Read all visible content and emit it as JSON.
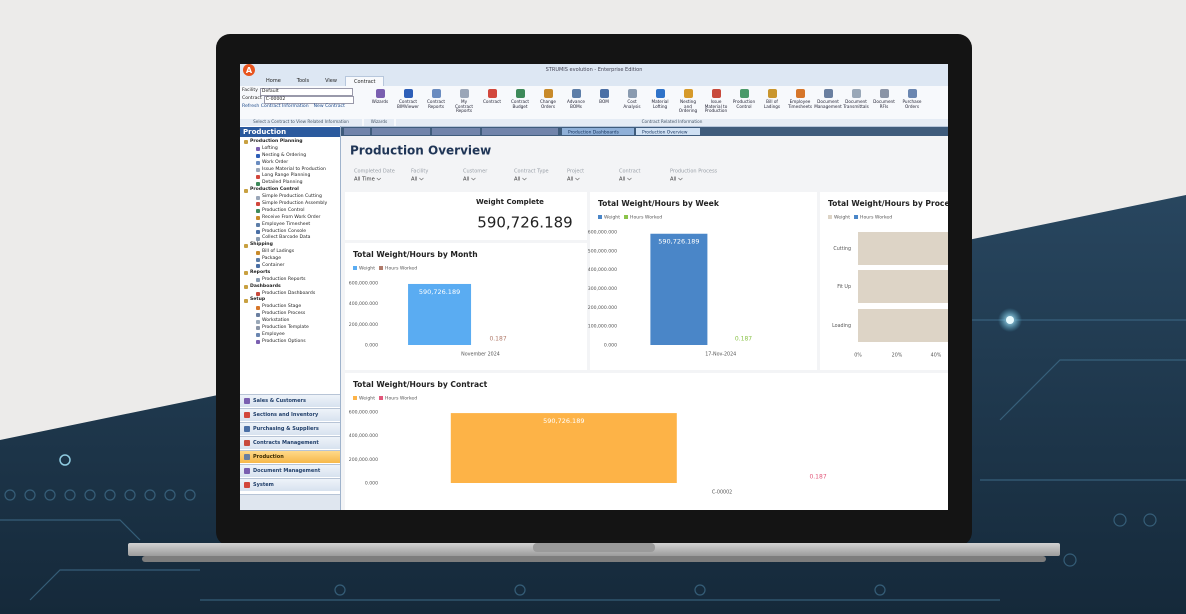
{
  "window_title": "STRUMIS evolution - Enterprise Edition",
  "ribbon": {
    "tabs": [
      "Home",
      "Tools",
      "View",
      "Contract"
    ],
    "facility_label": "Facility",
    "facility": "Default",
    "contract_label": "Contract",
    "contract": "C-00002",
    "refresh": "Refresh Contract Information",
    "new_contract": "New Contract",
    "select_hint": "Select a Contract to View Related Information",
    "buttons": [
      "Wizards",
      "Contract BIMViewer",
      "Contract Reports",
      "My Contract Reports",
      "Contract",
      "Contract Budget",
      "Change Orders",
      "Advance BOMs",
      "BOM",
      "Cost Analysis",
      "Material Lofting",
      "Nesting and Ordering",
      "Issue Material to Production",
      "Production Control",
      "Bill of Ladings",
      "Employee Timesheets",
      "Document Management",
      "Document Transmittals",
      "Document RFIs",
      "Purchase Orders"
    ],
    "groups": [
      "Wizards",
      "Contract Related Information"
    ]
  },
  "sidebar": {
    "title": "Production",
    "tree": [
      {
        "label": "Production Planning",
        "items": [
          "Lofting",
          "Nesting & Ordering",
          "Work Order",
          "Issue Material to Production",
          "Long Range Planning",
          "Detailed Planning"
        ]
      },
      {
        "label": "Production Control",
        "items": [
          "Simple Production Cutting",
          "Simple Production Assembly",
          "Production Control",
          "Receive From Work Order",
          "Employee Timesheet",
          "Production Console",
          "Collect Barcode Data"
        ]
      },
      {
        "label": "Shipping",
        "items": [
          "Bill of Ladings",
          "Package",
          "Container"
        ]
      },
      {
        "label": "Reports",
        "items": [
          "Production Reports"
        ]
      },
      {
        "label": "Dashboards",
        "items": [
          "Production Dashboards"
        ]
      },
      {
        "label": "Setup",
        "items": [
          "Production Stage",
          "Production Process",
          "Workstation",
          "Production Template",
          "Employee",
          "Production Options"
        ]
      }
    ],
    "modules": [
      "Sales & Customers",
      "Sections and Inventory",
      "Purchasing & Suppliers",
      "Contracts Management",
      "Production",
      "Document Management",
      "System"
    ]
  },
  "page_tabs": [
    "Production Dashboards",
    "Production Overview"
  ],
  "dashboard": {
    "title": "Production Overview",
    "filters": [
      {
        "label": "Completed Date",
        "value": "All Time"
      },
      {
        "label": "Facility",
        "value": "All"
      },
      {
        "label": "Customer",
        "value": "All"
      },
      {
        "label": "Contract Type",
        "value": "All"
      },
      {
        "label": "Project",
        "value": "All"
      },
      {
        "label": "Contract",
        "value": "All"
      },
      {
        "label": "Production Process",
        "value": "All"
      }
    ],
    "kpi": {
      "label": "Weight Complete",
      "value": "590,726.189"
    },
    "charts": [
      {
        "type": "bar",
        "title": "Total Weight/Hours by Month",
        "categories": [
          "November 2024"
        ],
        "series": [
          {
            "name": "Weight",
            "color": "#5aacf2",
            "values": [
              590726.189
            ],
            "value_labels": [
              "590,726.189"
            ]
          },
          {
            "name": "Hours Worked",
            "color": "#b07a6a",
            "values": [
              0.187
            ],
            "value_labels": [
              "0.187"
            ]
          }
        ],
        "ylim": [
          0,
          600000
        ],
        "yticks": [
          {
            "value": 0,
            "label": "0.000"
          },
          {
            "value": 200000,
            "label": "200,000.000"
          },
          {
            "value": 400000,
            "label": "400,000.000"
          },
          {
            "value": 600000,
            "label": "600,000.000"
          }
        ]
      },
      {
        "type": "bar",
        "title": "Total Weight/Hours by Week",
        "categories": [
          "17-Nov-2024"
        ],
        "series": [
          {
            "name": "Weight",
            "color": "#4a86c8",
            "values": [
              590726.189
            ],
            "value_labels": [
              "590,726.189"
            ]
          },
          {
            "name": "Hours Worked",
            "color": "#8bc34a",
            "values": [
              0.187
            ],
            "value_labels": [
              "0.187"
            ]
          }
        ],
        "ylim": [
          0,
          600000
        ],
        "yticks": [
          {
            "value": 0,
            "label": "0.000"
          },
          {
            "value": 100000,
            "label": "100,000.000"
          },
          {
            "value": 200000,
            "label": "200,000.000"
          },
          {
            "value": 300000,
            "label": "300,000.000"
          },
          {
            "value": 400000,
            "label": "400,000.000"
          },
          {
            "value": 500000,
            "label": "500,000.000"
          },
          {
            "value": 600000,
            "label": "600,000.000"
          }
        ]
      },
      {
        "type": "barh",
        "title": "Total Weight/Hours by Process",
        "categories": [
          "Cutting",
          "Fit Up",
          "Loading"
        ],
        "series": [
          {
            "name": "Weight",
            "color": "#ddd4c6",
            "values": [
              100,
              100,
              100
            ]
          },
          {
            "name": "Hours Worked",
            "color": "#4a86c8",
            "values": [
              0,
              0,
              0
            ]
          }
        ],
        "xlim": [
          0,
          100
        ],
        "xticks": [
          {
            "value": 0,
            "label": "0%"
          },
          {
            "value": 20,
            "label": "20%"
          },
          {
            "value": 40,
            "label": "40%"
          }
        ]
      },
      {
        "type": "bar",
        "title": "Total Weight/Hours by Contract",
        "categories": [
          "C-00002"
        ],
        "series": [
          {
            "name": "Weight",
            "color": "#fdb347",
            "values": [
              590726.189
            ],
            "value_labels": [
              "590,726.189"
            ]
          },
          {
            "name": "Hours Worked",
            "color": "#e2577a",
            "values": [
              0.187
            ],
            "value_labels": [
              "0.187"
            ]
          }
        ],
        "ylim": [
          0,
          600000
        ],
        "yticks": [
          {
            "value": 0,
            "label": "0.000"
          },
          {
            "value": 200000,
            "label": "200,000.000"
          },
          {
            "value": 400000,
            "label": "400,000.000"
          },
          {
            "value": 600000,
            "label": "600,000.000"
          }
        ]
      }
    ]
  }
}
